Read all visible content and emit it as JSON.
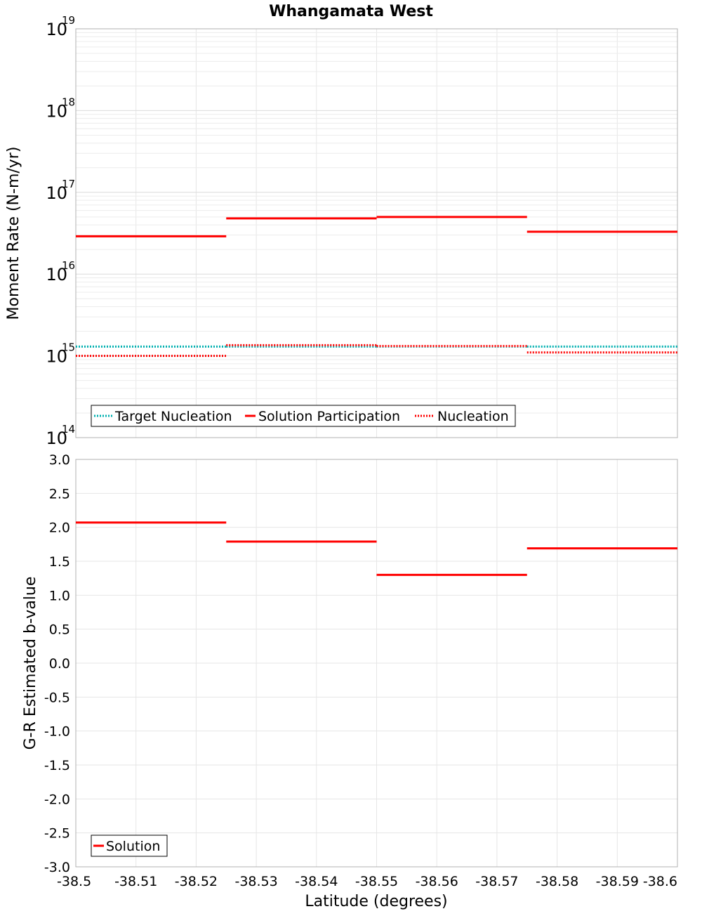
{
  "chart_data": [
    {
      "type": "line",
      "title": "Whangamata West",
      "ylabel": "Moment Rate (N-m/yr)",
      "xlabel": "",
      "yscale": "log",
      "ylim": [
        100000000000000.0,
        1e+19
      ],
      "xlim": [
        -38.5,
        -38.6
      ],
      "y_tick_exponents": [
        "14",
        "15",
        "16",
        "17",
        "18",
        "19"
      ],
      "y_tick_base": "10",
      "segment_bounds": [
        -38.5,
        -38.525,
        -38.55,
        -38.575,
        -38.6
      ],
      "series": [
        {
          "name": "Target Nucleation",
          "style": "dotted",
          "color": "#00b0b0",
          "values": [
            1300000000000000.0,
            1300000000000000.0,
            1300000000000000.0,
            1300000000000000.0
          ]
        },
        {
          "name": "Solution Participation",
          "style": "solid",
          "color": "#ff0000",
          "values": [
            2.9e+16,
            4.8e+16,
            5e+16,
            3.3e+16
          ]
        },
        {
          "name": "Nucleation",
          "style": "dotted",
          "color": "#ff0000",
          "values": [
            1000000000000000.0,
            1350000000000000.0,
            1320000000000000.0,
            1100000000000000.0
          ]
        }
      ],
      "legend_position": "bottom-left"
    },
    {
      "type": "line",
      "title": "",
      "ylabel": "G-R Estimated b-value",
      "xlabel": "Latitude (degrees)",
      "ylim": [
        -3.0,
        3.0
      ],
      "xlim": [
        -38.5,
        -38.6
      ],
      "y_ticks": [
        "3.0",
        "2.5",
        "2.0",
        "1.5",
        "1.0",
        "0.5",
        "0.0",
        "-0.5",
        "-1.0",
        "-1.5",
        "-2.0",
        "-2.5",
        "-3.0"
      ],
      "x_ticks": [
        "-38.5",
        "-38.51",
        "-38.52",
        "-38.53",
        "-38.54",
        "-38.55",
        "-38.56",
        "-38.57",
        "-38.58",
        "-38.59",
        "-38.6"
      ],
      "segment_bounds": [
        -38.5,
        -38.525,
        -38.55,
        -38.575,
        -38.6
      ],
      "series": [
        {
          "name": "Solution",
          "style": "solid",
          "color": "#ff0000",
          "values": [
            2.07,
            1.79,
            1.3,
            1.69
          ]
        }
      ],
      "legend_position": "bottom-left"
    }
  ]
}
